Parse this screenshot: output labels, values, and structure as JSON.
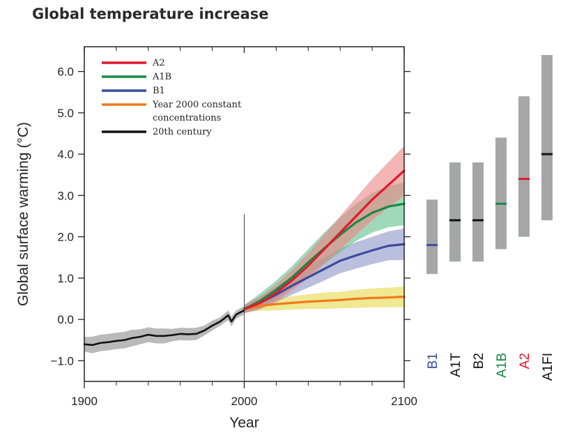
{
  "title": "Global temperature increase",
  "chart_data": {
    "type": "line",
    "xlabel": "Year",
    "ylabel": "Global surface warming (°C)",
    "xlim": [
      1900,
      2100
    ],
    "ylim": [
      -1.5,
      6.6
    ],
    "x_ticks": [
      {
        "value": 1900,
        "label": "1900"
      },
      {
        "value": 2000,
        "label": "2000"
      },
      {
        "value": 2100,
        "label": "2100"
      }
    ],
    "y_ticks": [
      {
        "value": -1.0,
        "label": "−1.0"
      },
      {
        "value": 0.0,
        "label": "0.0"
      },
      {
        "value": 1.0,
        "label": "1.0"
      },
      {
        "value": 2.0,
        "label": "2.0"
      },
      {
        "value": 3.0,
        "label": "3.0"
      },
      {
        "value": 4.0,
        "label": "4.0"
      },
      {
        "value": 5.0,
        "label": "5.0"
      },
      {
        "value": 6.0,
        "label": "6.0"
      }
    ],
    "legend_position": "top-left",
    "divider_year": 2000,
    "series": [
      {
        "name": "20th century",
        "color": "#111111",
        "band_color": "#8c8c8c",
        "x": [
          1900,
          1905,
          1910,
          1915,
          1920,
          1925,
          1930,
          1935,
          1940,
          1945,
          1950,
          1955,
          1960,
          1965,
          1970,
          1975,
          1980,
          1985,
          1990,
          1992,
          1995,
          2000
        ],
        "values": [
          -0.6,
          -0.62,
          -0.57,
          -0.55,
          -0.52,
          -0.5,
          -0.45,
          -0.42,
          -0.37,
          -0.4,
          -0.4,
          -0.38,
          -0.35,
          -0.36,
          -0.35,
          -0.27,
          -0.15,
          -0.05,
          0.1,
          -0.05,
          0.12,
          0.22
        ],
        "band": [
          0.18,
          0.2,
          0.2,
          0.2,
          0.2,
          0.2,
          0.2,
          0.18,
          0.18,
          0.18,
          0.18,
          0.15,
          0.15,
          0.15,
          0.15,
          0.12,
          0.12,
          0.1,
          0.12,
          0.12,
          0.1,
          0.1
        ]
      },
      {
        "name": "Year 2000 constant concentrations",
        "color": "#f07a1a",
        "band_color": "#e6d84a",
        "x": [
          2000,
          2010,
          2020,
          2030,
          2040,
          2050,
          2060,
          2070,
          2080,
          2090,
          2100
        ],
        "values": [
          0.25,
          0.33,
          0.37,
          0.4,
          0.43,
          0.45,
          0.47,
          0.5,
          0.52,
          0.53,
          0.55
        ],
        "band": [
          0.08,
          0.12,
          0.15,
          0.16,
          0.18,
          0.2,
          0.2,
          0.22,
          0.23,
          0.24,
          0.25
        ]
      },
      {
        "name": "B1",
        "color": "#3a4d9c",
        "band_color": "#8e94c8",
        "x": [
          2000,
          2010,
          2020,
          2030,
          2040,
          2050,
          2060,
          2070,
          2080,
          2090,
          2100
        ],
        "values": [
          0.25,
          0.4,
          0.6,
          0.82,
          1.02,
          1.22,
          1.42,
          1.55,
          1.67,
          1.78,
          1.82
        ],
        "band": [
          0.1,
          0.15,
          0.18,
          0.22,
          0.25,
          0.28,
          0.3,
          0.32,
          0.33,
          0.35,
          0.38
        ]
      },
      {
        "name": "A1B",
        "color": "#178a45",
        "band_color": "#5fc08a",
        "x": [
          2000,
          2010,
          2020,
          2030,
          2040,
          2050,
          2060,
          2070,
          2080,
          2090,
          2100
        ],
        "values": [
          0.25,
          0.45,
          0.72,
          1.02,
          1.38,
          1.72,
          2.05,
          2.35,
          2.58,
          2.73,
          2.8
        ],
        "band": [
          0.1,
          0.18,
          0.22,
          0.27,
          0.32,
          0.38,
          0.42,
          0.45,
          0.48,
          0.5,
          0.52
        ]
      },
      {
        "name": "A2",
        "color": "#e2182d",
        "band_color": "#ec8484",
        "x": [
          2000,
          2010,
          2020,
          2030,
          2040,
          2050,
          2060,
          2070,
          2080,
          2090,
          2100
        ],
        "values": [
          0.25,
          0.4,
          0.65,
          0.95,
          1.3,
          1.7,
          2.1,
          2.5,
          2.9,
          3.25,
          3.6
        ],
        "band": [
          0.1,
          0.15,
          0.2,
          0.25,
          0.3,
          0.35,
          0.4,
          0.45,
          0.5,
          0.55,
          0.6
        ]
      }
    ],
    "legend": [
      {
        "lines": [
          "A2"
        ],
        "color": "#e2182d"
      },
      {
        "lines": [
          "A1B"
        ],
        "color": "#178a45"
      },
      {
        "lines": [
          "B1"
        ],
        "color": "#3a4d9c"
      },
      {
        "lines": [
          "Year 2000 constant",
          "concentrations"
        ],
        "color": "#f07a1a"
      },
      {
        "lines": [
          "20th century"
        ],
        "color": "#111111"
      }
    ],
    "scenario_ranges": {
      "type": "range",
      "bar_color": "#a5a7a6",
      "items": [
        {
          "label": "B1",
          "low": 1.1,
          "high": 2.9,
          "best": 1.8,
          "color": "#3a4d9c"
        },
        {
          "label": "A1T",
          "low": 1.4,
          "high": 3.8,
          "best": 2.4,
          "color": "#111111"
        },
        {
          "label": "B2",
          "low": 1.4,
          "high": 3.8,
          "best": 2.4,
          "color": "#111111"
        },
        {
          "label": "A1B",
          "low": 1.7,
          "high": 4.4,
          "best": 2.8,
          "color": "#178a45"
        },
        {
          "label": "A2",
          "low": 2.0,
          "high": 5.4,
          "best": 3.4,
          "color": "#e2182d"
        },
        {
          "label": "A1FI",
          "low": 2.4,
          "high": 6.4,
          "best": 4.0,
          "color": "#111111"
        }
      ]
    }
  }
}
